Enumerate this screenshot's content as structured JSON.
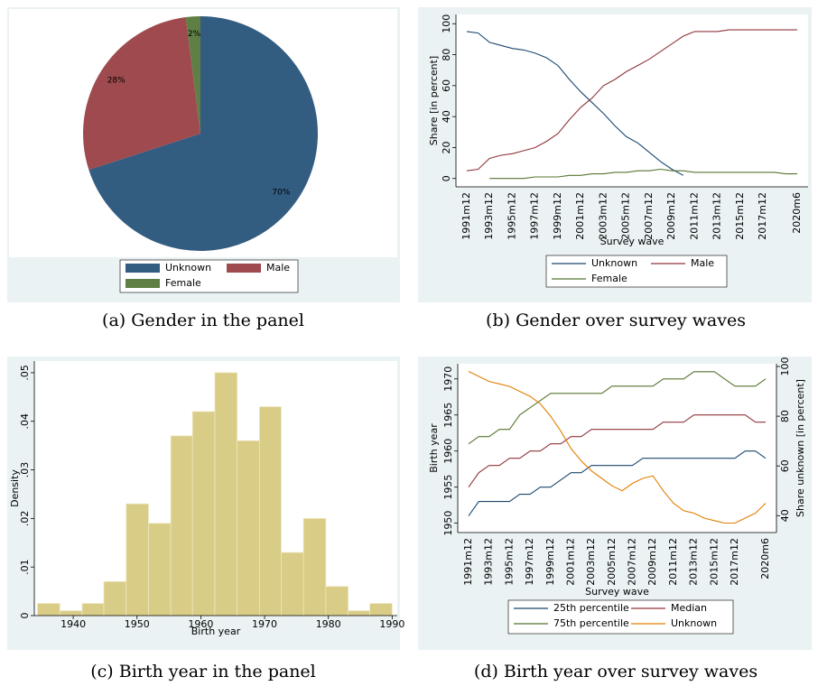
{
  "chart_data": [
    {
      "type": "pie",
      "caption": "(a) Gender in the panel",
      "labels": [
        "Unknown",
        "Male",
        "Female"
      ],
      "values": [
        70,
        28,
        2
      ],
      "value_labels": [
        "70%",
        "28%",
        "2%"
      ],
      "colors": [
        "#335c81",
        "#9e4a4e",
        "#5f7f45"
      ]
    },
    {
      "type": "line",
      "caption": "(b) Gender over survey waves",
      "xlabel": "Survey wave",
      "ylabel": "Share [in percent]",
      "categories": [
        "1991m12",
        null,
        "1993m12",
        null,
        "1995m12",
        null,
        "1997m12",
        null,
        "1999m12",
        null,
        "2001m12",
        null,
        "2003m12",
        null,
        "2005m12",
        null,
        "2007m12",
        null,
        "2009m12",
        null,
        "2011m12",
        null,
        "2013m12",
        null,
        "2015m12",
        null,
        "2017m12",
        null,
        null,
        "2020m6"
      ],
      "ylim": [
        -5.4,
        106
      ],
      "yticks": [
        0,
        20,
        40,
        60,
        80,
        100
      ],
      "series": [
        {
          "name": "Unknown",
          "color": "#1a476f",
          "values": [
            95,
            94,
            88,
            86,
            84,
            83,
            81,
            78,
            73,
            64,
            56,
            49,
            42,
            34,
            27,
            23,
            17,
            11,
            6,
            2,
            null,
            null,
            null,
            null,
            null,
            null,
            null,
            null,
            null,
            null
          ]
        },
        {
          "name": "Male",
          "color": "#90353b",
          "values": [
            5,
            6,
            13,
            15,
            16,
            18,
            20,
            24,
            29,
            38,
            46,
            52,
            60,
            64,
            69,
            73,
            77,
            82,
            87,
            92,
            95,
            95,
            95,
            96,
            96,
            96,
            96,
            96,
            96,
            96
          ]
        },
        {
          "name": "Female",
          "color": "#55752f",
          "values": [
            null,
            null,
            0,
            0,
            0,
            0,
            1,
            1,
            1,
            2,
            2,
            3,
            3,
            4,
            4,
            5,
            5,
            6,
            5,
            5,
            4,
            4,
            4,
            4,
            4,
            4,
            4,
            4,
            3,
            3
          ]
        }
      ]
    },
    {
      "type": "histogram",
      "caption": "(c) Birth year in the panel",
      "xlabel": "Birth year",
      "ylabel": "Density",
      "color": "#d8cc87",
      "bins": [
        1934.4,
        1937.9,
        1941.4,
        1944.8,
        1948.3,
        1951.8,
        1955.3,
        1958.7,
        1962.2,
        1965.7,
        1969.2,
        1972.6,
        1976.1,
        1979.6,
        1983.1,
        1986.5,
        1990.0
      ],
      "values": [
        0.0025,
        0.001,
        0.0025,
        0.007,
        0.023,
        0.019,
        0.037,
        0.042,
        0.05,
        0.036,
        0.043,
        0.013,
        0.02,
        0.006,
        0.001,
        0.0025
      ],
      "xlim": [
        1933.9,
        1990.8
      ],
      "xticks": [
        1940,
        1950,
        1960,
        1970,
        1980,
        1990
      ],
      "ylim": [
        0,
        0.0524
      ],
      "yticks": [
        0,
        {
          "value": 0.01,
          "label": ".01"
        },
        {
          "value": 0.02,
          "label": ".02"
        },
        {
          "value": 0.03,
          "label": ".03"
        },
        {
          "value": 0.04,
          "label": ".04"
        },
        {
          "value": 0.05,
          "label": ".05"
        }
      ]
    },
    {
      "type": "line",
      "caption": "(d) Birth year over survey waves",
      "xlabel": "Survey wave",
      "ylabel": "Birth year",
      "y2label": "Share unknown [in percent]",
      "categories": [
        "1991m12",
        null,
        "1993m12",
        null,
        "1995m12",
        null,
        "1997m12",
        null,
        "1999m12",
        null,
        "2001m12",
        null,
        "2003m12",
        null,
        "2005m12",
        null,
        "2007m12",
        null,
        "2009m12",
        null,
        "2011m12",
        null,
        "2013m12",
        null,
        "2015m12",
        null,
        "2017m12",
        null,
        null,
        "2020m6"
      ],
      "ylim": [
        1948.7,
        1972.1
      ],
      "yticks": [
        1950,
        1955,
        1960,
        1965,
        1970
      ],
      "y2lim": [
        33.2,
        101.1
      ],
      "y2ticks": [
        40,
        60,
        80,
        100
      ],
      "series": [
        {
          "name": "25th percentile",
          "color": "#1a476f",
          "values": [
            1951,
            1953,
            1953,
            1953,
            1953,
            1954,
            1954,
            1955,
            1955,
            1956,
            1957,
            1957,
            1958,
            1958,
            1958,
            1958,
            1958,
            1959,
            1959,
            1959,
            1959,
            1959,
            1959,
            1959,
            1959,
            1959,
            1959,
            1960,
            1960,
            1959
          ]
        },
        {
          "name": "Median",
          "color": "#90353b",
          "values": [
            1955,
            1957,
            1958,
            1958,
            1959,
            1959,
            1960,
            1960,
            1961,
            1961,
            1962,
            1962,
            1963,
            1963,
            1963,
            1963,
            1963,
            1963,
            1963,
            1964,
            1964,
            1964,
            1965,
            1965,
            1965,
            1965,
            1965,
            1965,
            1964,
            1964
          ]
        },
        {
          "name": "75th percentile",
          "color": "#55752f",
          "values": [
            1961,
            1962,
            1962,
            1963,
            1963,
            1965,
            1966,
            1967,
            1968,
            1968,
            1968,
            1968,
            1968,
            1968,
            1969,
            1969,
            1969,
            1969,
            1969,
            1970,
            1970,
            1970,
            1971,
            1971,
            1971,
            1970,
            1969,
            1969,
            1969,
            1970
          ]
        },
        {
          "name": "Unknown",
          "color": "#e37e00",
          "axis": "y2",
          "values": [
            98,
            96,
            94,
            93,
            92,
            90,
            88,
            85,
            80,
            74,
            67,
            62,
            58,
            55,
            52,
            50,
            53,
            55,
            56,
            50,
            45,
            42,
            41,
            39,
            38,
            37,
            37,
            39,
            41,
            45
          ]
        }
      ]
    }
  ]
}
